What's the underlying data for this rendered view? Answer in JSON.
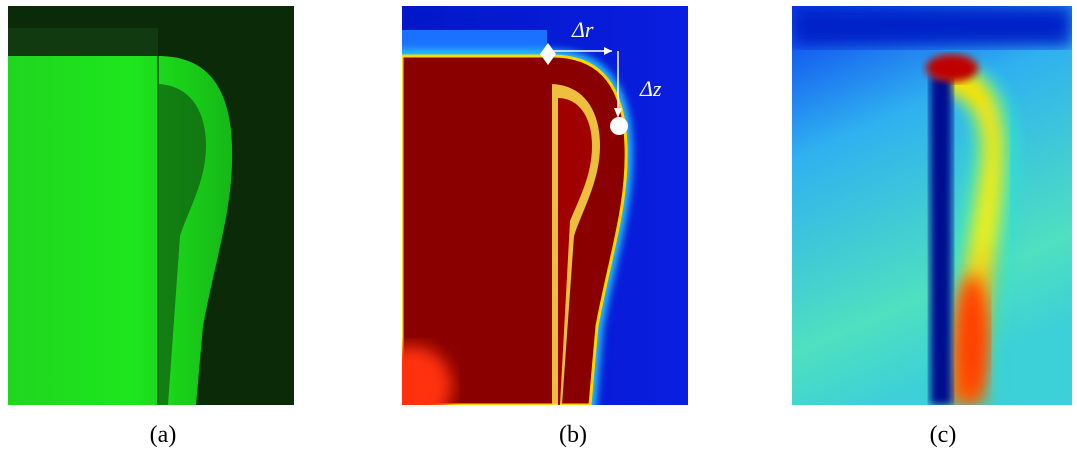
{
  "panels": [
    {
      "label": "(a)"
    },
    {
      "label": "(b)",
      "annotations": [
        "Δr",
        "Δz"
      ]
    },
    {
      "label": "(c)"
    }
  ]
}
